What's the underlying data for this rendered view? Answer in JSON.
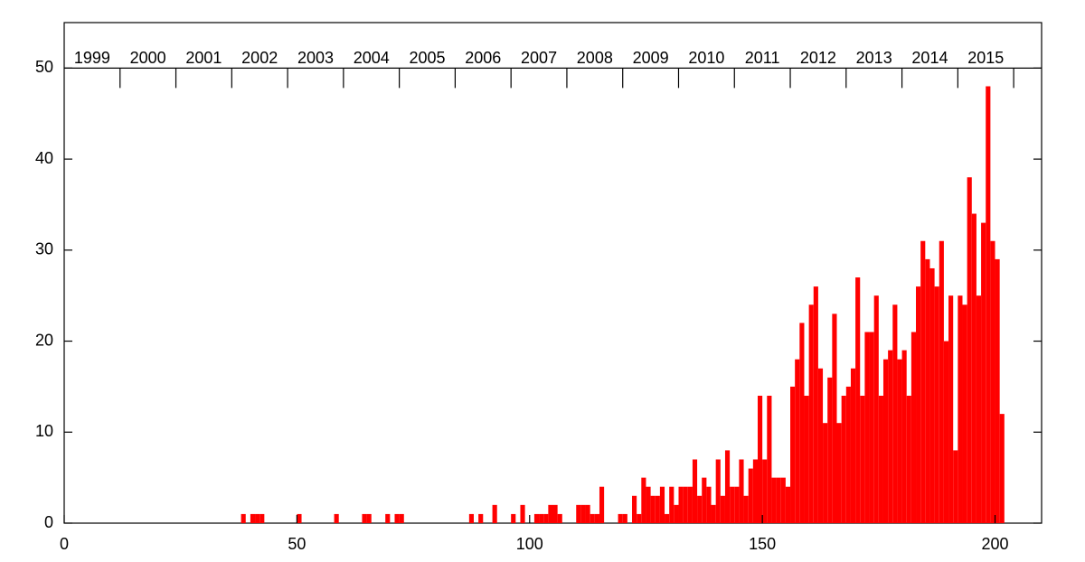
{
  "chart_data": {
    "type": "bar",
    "color": "#ff0000",
    "x": [
      38,
      40,
      41,
      42,
      50,
      58,
      64,
      65,
      69,
      71,
      72,
      87,
      89,
      92,
      96,
      98,
      101,
      102,
      103,
      104,
      105,
      106,
      110,
      111,
      112,
      113,
      114,
      115,
      119,
      120,
      122,
      123,
      124,
      125,
      126,
      127,
      128,
      129,
      130,
      131,
      132,
      133,
      134,
      135,
      136,
      137,
      138,
      139,
      140,
      141,
      142,
      143,
      144,
      145,
      146,
      147,
      148,
      149,
      150,
      151,
      152,
      153,
      154,
      155,
      156,
      157,
      158,
      159,
      160,
      161,
      162,
      163,
      164,
      165,
      166,
      167,
      168,
      169,
      170,
      171,
      172,
      173,
      174,
      175,
      176,
      177,
      178,
      179,
      180,
      181,
      182,
      183,
      184,
      185,
      186,
      187,
      188,
      189,
      190,
      191,
      192,
      193,
      194,
      195,
      196,
      197,
      198,
      199,
      200,
      201
    ],
    "values": [
      1,
      1,
      1,
      1,
      1,
      1,
      1,
      1,
      1,
      1,
      1,
      1,
      1,
      2,
      1,
      2,
      1,
      1,
      1,
      2,
      2,
      1,
      2,
      2,
      2,
      1,
      1,
      4,
      1,
      1,
      3,
      1,
      5,
      4,
      3,
      3,
      4,
      1,
      4,
      2,
      4,
      4,
      4,
      7,
      3,
      5,
      4,
      2,
      7,
      3,
      8,
      4,
      4,
      7,
      3,
      6,
      7,
      14,
      7,
      14,
      5,
      5,
      5,
      4,
      15,
      18,
      22,
      14,
      24,
      26,
      17,
      11,
      16,
      23,
      11,
      14,
      15,
      17,
      27,
      14,
      21,
      21,
      25,
      14,
      18,
      19,
      24,
      18,
      19,
      14,
      21,
      26,
      31,
      29,
      28,
      26,
      31,
      20,
      25,
      8,
      25,
      24,
      38,
      34,
      25,
      33,
      48,
      31,
      29,
      12
    ],
    "xlim": [
      0,
      210
    ],
    "ylim": [
      0,
      55
    ],
    "xticks": [
      0,
      50,
      100,
      150,
      200
    ],
    "yticks": [
      0,
      10,
      20,
      30,
      40,
      50
    ],
    "year_axis_y": 50,
    "year_ticks": [
      12,
      24,
      36,
      48,
      60,
      72,
      84,
      96,
      108,
      120,
      132,
      144,
      156,
      168,
      180,
      192,
      204
    ],
    "year_labels": [
      "1999",
      "2000",
      "2001",
      "2002",
      "2003",
      "2004",
      "2005",
      "2006",
      "2007",
      "2008",
      "2009",
      "2010",
      "2011",
      "2012",
      "2013",
      "2014",
      "2015"
    ]
  }
}
